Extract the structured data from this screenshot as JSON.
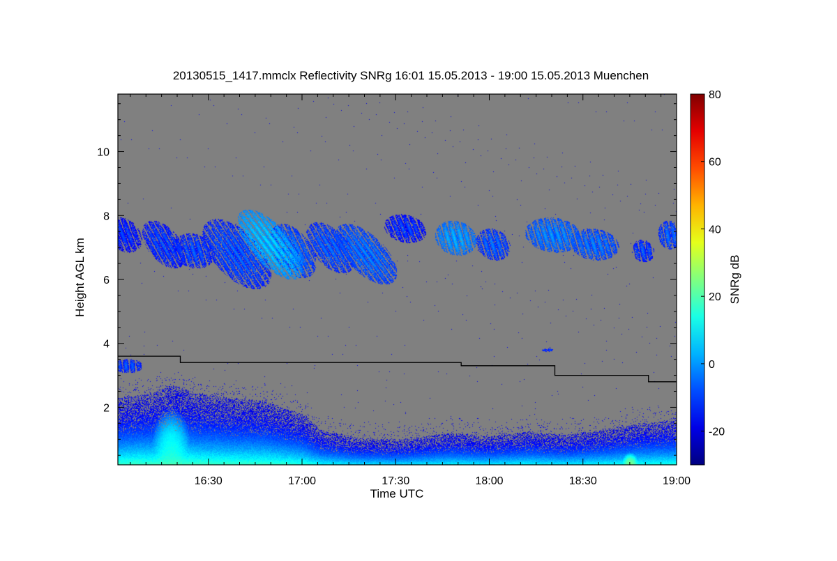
{
  "chart_data": {
    "type": "heatmap",
    "title": "20130515_1417.mmclx Reflectivity SNRg   16:01 15.05.2013 - 19:00 15.05.2013 Muenchen",
    "xlabel": "Time UTC",
    "ylabel": "Height AGL km",
    "colorbar_label": "SNRg dB",
    "xlim": [
      16.0167,
      19.0
    ],
    "ylim": [
      0.2,
      11.8
    ],
    "x_ticks": [
      {
        "value": 16.5,
        "label": "16:30"
      },
      {
        "value": 17.0,
        "label": "17:00"
      },
      {
        "value": 17.5,
        "label": "17:30"
      },
      {
        "value": 18.0,
        "label": "18:00"
      },
      {
        "value": 18.5,
        "label": "18:30"
      },
      {
        "value": 19.0,
        "label": "19:00"
      }
    ],
    "y_ticks": [
      {
        "value": 2,
        "label": "2"
      },
      {
        "value": 4,
        "label": "4"
      },
      {
        "value": 6,
        "label": "6"
      },
      {
        "value": 8,
        "label": "8"
      },
      {
        "value": 10,
        "label": "10"
      }
    ],
    "colorbar": {
      "range": [
        -30,
        80
      ],
      "ticks": [
        {
          "value": -20,
          "label": "-20"
        },
        {
          "value": 0,
          "label": "0"
        },
        {
          "value": 20,
          "label": "20"
        },
        {
          "value": 40,
          "label": "40"
        },
        {
          "value": 60,
          "label": "60"
        },
        {
          "value": 80,
          "label": "80"
        }
      ],
      "colormap": "jet"
    },
    "background_color": "#808080",
    "melting_layer_line": {
      "color": "#000000",
      "points": [
        [
          16.0167,
          3.6
        ],
        [
          16.35,
          3.6
        ],
        [
          16.35,
          3.4
        ],
        [
          17.85,
          3.4
        ],
        [
          17.85,
          3.3
        ],
        [
          18.35,
          3.3
        ],
        [
          18.35,
          3.0
        ],
        [
          18.85,
          3.0
        ],
        [
          18.85,
          2.8
        ],
        [
          19.0,
          2.8
        ]
      ]
    },
    "cloud_regions": [
      {
        "t": 16.05,
        "h": 7.4,
        "w": 0.09,
        "d": 0.55,
        "snr": -18,
        "shear": -0.8
      },
      {
        "t": 16.26,
        "h": 7.1,
        "w": 0.1,
        "d": 0.75,
        "snr": -16,
        "shear": -1.3
      },
      {
        "t": 16.42,
        "h": 6.9,
        "w": 0.11,
        "d": 0.55,
        "snr": -15,
        "shear": -0.6
      },
      {
        "t": 16.65,
        "h": 6.8,
        "w": 0.15,
        "d": 1.1,
        "snr": -14,
        "shear": -1.6
      },
      {
        "t": 16.83,
        "h": 7.1,
        "w": 0.13,
        "d": 1.1,
        "snr": -2,
        "shear": -1.8
      },
      {
        "t": 16.95,
        "h": 6.9,
        "w": 0.11,
        "d": 0.85,
        "snr": -12,
        "shear": -1.1
      },
      {
        "t": 17.15,
        "h": 7.0,
        "w": 0.11,
        "d": 0.8,
        "snr": -13,
        "shear": -1.4
      },
      {
        "t": 17.34,
        "h": 6.8,
        "w": 0.13,
        "d": 0.95,
        "snr": -11,
        "shear": -1.8
      },
      {
        "t": 17.55,
        "h": 7.6,
        "w": 0.11,
        "d": 0.45,
        "snr": -17,
        "shear": -0.9
      },
      {
        "t": 17.82,
        "h": 7.3,
        "w": 0.11,
        "d": 0.55,
        "snr": -6,
        "shear": -0.5
      },
      {
        "t": 18.02,
        "h": 7.1,
        "w": 0.09,
        "d": 0.5,
        "snr": -13,
        "shear": -0.6
      },
      {
        "t": 18.34,
        "h": 7.4,
        "w": 0.15,
        "d": 0.55,
        "snr": -9,
        "shear": -0.6
      },
      {
        "t": 18.56,
        "h": 7.1,
        "w": 0.13,
        "d": 0.5,
        "snr": -11,
        "shear": -0.6
      },
      {
        "t": 18.82,
        "h": 6.9,
        "w": 0.06,
        "d": 0.35,
        "snr": -15,
        "shear": -0.3
      },
      {
        "t": 18.96,
        "h": 7.4,
        "w": 0.06,
        "d": 0.45,
        "snr": -13,
        "shear": -0.2
      },
      {
        "t": 16.07,
        "h": 3.3,
        "w": 0.08,
        "d": 0.22,
        "snr": -15,
        "shear": 0
      },
      {
        "t": 18.31,
        "h": 3.8,
        "w": 0.03,
        "d": 0.05,
        "snr": -15,
        "shear": 0
      }
    ],
    "boundary_layer": {
      "top_profile": [
        [
          16.02,
          2.3
        ],
        [
          16.2,
          2.45
        ],
        [
          16.3,
          2.7
        ],
        [
          16.45,
          2.45
        ],
        [
          16.6,
          2.3
        ],
        [
          16.8,
          2.2
        ],
        [
          17.0,
          1.8
        ],
        [
          17.1,
          1.3
        ],
        [
          17.3,
          1.05
        ],
        [
          17.5,
          1.0
        ],
        [
          17.8,
          1.2
        ],
        [
          18.0,
          1.1
        ],
        [
          18.2,
          1.25
        ],
        [
          18.4,
          1.15
        ],
        [
          18.6,
          1.3
        ],
        [
          18.8,
          1.5
        ],
        [
          19.0,
          1.6
        ]
      ],
      "peak_snr_near_ground": 30,
      "peak_regions": [
        {
          "t": 16.3,
          "h": 1.0,
          "w": 0.1,
          "d": 1.0,
          "snr": 20
        },
        {
          "t": 18.75,
          "h": 0.3,
          "w": 0.04,
          "d": 0.3,
          "snr": 32
        }
      ]
    }
  }
}
